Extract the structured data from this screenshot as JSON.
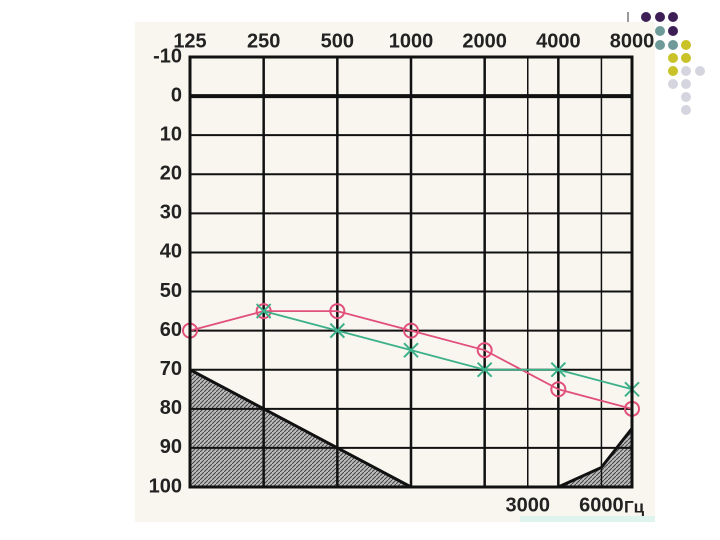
{
  "chart_data": {
    "type": "line",
    "xlim": [
      125,
      8000
    ],
    "x_log": true,
    "xticks": [
      125,
      250,
      500,
      1000,
      2000,
      4000,
      8000
    ],
    "xticks_bottom": [
      3000,
      6000
    ],
    "x_unit": "Гц",
    "ylim": [
      -10,
      100
    ],
    "y_inverted": true,
    "yticks": [
      -10,
      0,
      10,
      20,
      30,
      40,
      50,
      60,
      70,
      80,
      90,
      100
    ],
    "grid": true,
    "x": [
      125,
      250,
      500,
      1000,
      2000,
      4000,
      8000
    ],
    "series": [
      {
        "color": "#e0507a",
        "marker": "circle",
        "values": [
          60,
          55,
          55,
          60,
          65,
          75,
          80
        ]
      },
      {
        "color": "#3cb08a",
        "marker": "cross",
        "values": [
          null,
          55,
          60,
          65,
          70,
          70,
          75
        ]
      }
    ],
    "shaded_areas": [
      {
        "x": [
          125,
          1000
        ],
        "values": [
          70,
          100
        ]
      },
      {
        "x": [
          4000,
          6000,
          8000
        ],
        "values": [
          100,
          95,
          85
        ]
      }
    ]
  }
}
